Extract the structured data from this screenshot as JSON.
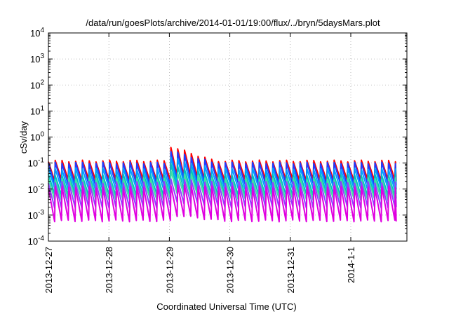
{
  "chart_data": {
    "type": "line",
    "title": "/data/run/goesPlots/archive/2014-01-01/19:00/flux/../bryn/5daysMars.plot",
    "xlabel": "Coordinated Universal Time (UTC)",
    "ylabel": "cSv/day",
    "yscale": "log",
    "ylim": [
      0.0001,
      10000
    ],
    "xlim": [
      "2013-12-27",
      "2014-01-01 18:00"
    ],
    "x_tick_labels": [
      "2013-12-27",
      "2013-12-28",
      "2013-12-29",
      "2013-12-30",
      "2013-12-31",
      "2014-1-1"
    ],
    "y_ticks": [
      {
        "mantissa": "10",
        "exp": "-4"
      },
      {
        "mantissa": "10",
        "exp": "-3"
      },
      {
        "mantissa": "10",
        "exp": "-2"
      },
      {
        "mantissa": "10",
        "exp": "-1"
      },
      {
        "mantissa": "10",
        "exp": "0"
      },
      {
        "mantissa": "10",
        "exp": "1"
      },
      {
        "mantissa": "10",
        "exp": "2"
      },
      {
        "mantissa": "10",
        "exp": "3"
      },
      {
        "mantissa": "10",
        "exp": "4"
      }
    ],
    "grid": true,
    "sawtooth_period_hours": 2.7,
    "event_start": "2013-12-29 00:00",
    "event_end": "2013-12-29 18:00",
    "series": [
      {
        "color": "#ff0000",
        "peak_normal": 0.12,
        "trough_normal": 0.022,
        "peak_event": 0.45
      },
      {
        "color": "#1e3cff",
        "peak_normal": 0.1,
        "trough_normal": 0.015,
        "peak_event": 0.3
      },
      {
        "color": "#00a0ff",
        "peak_normal": 0.06,
        "trough_normal": 0.01,
        "peak_event": 0.17
      },
      {
        "color": "#00c0c0",
        "peak_normal": 0.035,
        "trough_normal": 0.006,
        "peak_event": 0.09
      },
      {
        "color": "#40e0a0",
        "peak_normal": 0.025,
        "trough_normal": 0.004,
        "peak_event": 0.05
      },
      {
        "color": "#9040ff",
        "peak_normal": 0.018,
        "trough_normal": 0.002,
        "peak_event": 0.025
      },
      {
        "color": "#e000e0",
        "peak_normal": 0.012,
        "trough_normal": 0.0006,
        "peak_event": 0.015
      }
    ]
  }
}
